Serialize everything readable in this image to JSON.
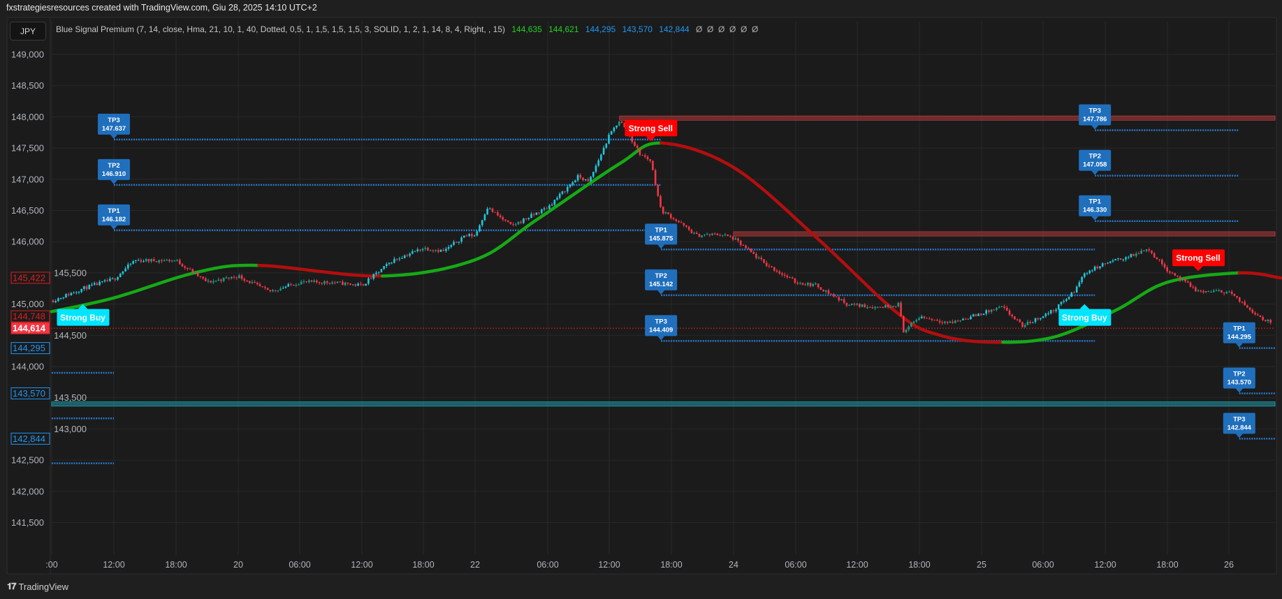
{
  "header": {
    "attribution": "fxstrategiesresources created with TradingView.com, Giu 28, 2025 14:10 UTC+2",
    "symbol": "JPY",
    "indicator": "Blue Signal Premium (7, 14, close, Hma, 21, 10, 1, 40, Dotted, 0,5, 1, 1,5, 1,5, 1,5, 3, SOLID, 1, 2, 1, 14, 8, 4, Right, , 15)",
    "values": [
      {
        "text": "144,635",
        "color": "#22d322"
      },
      {
        "text": "144,621",
        "color": "#22d322"
      },
      {
        "text": "144,295",
        "color": "#2196f3"
      },
      {
        "text": "143,570",
        "color": "#2196f3"
      },
      {
        "text": "142,844",
        "color": "#2196f3"
      }
    ],
    "nulls": "Ø  Ø  Ø  Ø  Ø  Ø"
  },
  "watermark": {
    "logo": "17",
    "text": "TradingView"
  },
  "colors": {
    "up": "#12a08a",
    "up_strong": "#1ec8dc",
    "down": "#f23645",
    "hma_bull": "#16a916",
    "hma_bear": "#b30e0e",
    "tp": "#1f6fbd",
    "buy": "#00e5ff",
    "sell": "#ff0000",
    "zone_red": "#b33a3a",
    "zone_cyan": "#1f9aa8",
    "grid": "#282828",
    "axis_text": "#b2b5be"
  },
  "chart_data": {
    "type": "candlestick",
    "price_axis": {
      "side": "left",
      "range": [
        141.3,
        149.2
      ]
    },
    "price_ticks": [
      {
        "label": "149,000",
        "value": 149.0
      },
      {
        "label": "148,500",
        "value": 148.5
      },
      {
        "label": "148,000",
        "value": 148.0
      },
      {
        "label": "147,500",
        "value": 147.5
      },
      {
        "label": "147,000",
        "value": 147.0
      },
      {
        "label": "146,500",
        "value": 146.5
      },
      {
        "label": "146,000",
        "value": 146.0
      },
      {
        "label": "145,500",
        "value": 145.5
      },
      {
        "label": "145,000",
        "value": 145.0
      },
      {
        "label": "144,500",
        "value": 144.5
      },
      {
        "label": "144,000",
        "value": 144.0
      },
      {
        "label": "143,500",
        "value": 143.5
      },
      {
        "label": "143,000",
        "value": 143.0
      },
      {
        "label": "142,500",
        "value": 142.5
      },
      {
        "label": "142,000",
        "value": 142.0
      },
      {
        "label": "141,500",
        "value": 141.5
      }
    ],
    "time_ticks": [
      ":00",
      "12:00",
      "18:00",
      "20",
      "06:00",
      "12:00",
      "18:00",
      "22",
      "06:00",
      "12:00",
      "18:00",
      "24",
      "06:00",
      "12:00",
      "18:00",
      "25",
      "06:00",
      "12:00",
      "18:00",
      "26"
    ],
    "grid": true,
    "price_path": [
      {
        "t": "19 06:00",
        "close": 145.05
      },
      {
        "t": "19 09:00",
        "close": 145.25
      },
      {
        "t": "19 12:00",
        "close": 145.4
      },
      {
        "t": "19 14:00",
        "close": 145.7
      },
      {
        "t": "19 18:00",
        "close": 145.7
      },
      {
        "t": "19 21:00",
        "close": 145.35
      },
      {
        "t": "20 00:00",
        "close": 145.45
      },
      {
        "t": "20 03:00",
        "close": 145.2
      },
      {
        "t": "20 06:00",
        "close": 145.35
      },
      {
        "t": "20 09:00",
        "close": 145.35
      },
      {
        "t": "20 12:00",
        "close": 145.3
      },
      {
        "t": "20 15:00",
        "close": 145.7
      },
      {
        "t": "20 18:00",
        "close": 145.9
      },
      {
        "t": "21 06:00",
        "close": 145.85
      },
      {
        "t": "21 18:00",
        "close": 146.1
      },
      {
        "t": "22 00:00",
        "close": 146.1
      },
      {
        "t": "22 01:00",
        "close": 146.55
      },
      {
        "t": "22 03:00",
        "close": 146.25
      },
      {
        "t": "22 06:00",
        "close": 146.55
      },
      {
        "t": "22 09:00",
        "close": 147.05
      },
      {
        "t": "22 10:00",
        "close": 146.95
      },
      {
        "t": "22 12:00",
        "close": 147.7
      },
      {
        "t": "22 13:00",
        "close": 147.95
      },
      {
        "t": "22 15:00",
        "close": 147.4
      },
      {
        "t": "22 16:00",
        "close": 147.3
      },
      {
        "t": "22 17:00",
        "close": 146.5
      },
      {
        "t": "22 18:00",
        "close": 146.4
      },
      {
        "t": "23 06:00",
        "close": 146.1
      },
      {
        "t": "23 18:00",
        "close": 146.12
      },
      {
        "t": "24 00:00",
        "close": 146.05
      },
      {
        "t": "24 03:00",
        "close": 145.65
      },
      {
        "t": "24 06:00",
        "close": 145.35
      },
      {
        "t": "24 08:00",
        "close": 145.3
      },
      {
        "t": "24 11:00",
        "close": 145.0
      },
      {
        "t": "24 14:00",
        "close": 144.95
      },
      {
        "t": "24 16:00",
        "close": 145.0
      },
      {
        "t": "24 16:30",
        "close": 144.55
      },
      {
        "t": "24 18:00",
        "close": 144.8
      },
      {
        "t": "24 21:00",
        "close": 144.7
      },
      {
        "t": "25 00:00",
        "close": 144.85
      },
      {
        "t": "25 02:00",
        "close": 144.95
      },
      {
        "t": "25 04:00",
        "close": 144.65
      },
      {
        "t": "25 07:00",
        "close": 144.9
      },
      {
        "t": "25 09:00",
        "close": 145.2
      },
      {
        "t": "25 10:00",
        "close": 145.5
      },
      {
        "t": "25 12:00",
        "close": 145.65
      },
      {
        "t": "25 15:00",
        "close": 145.8
      },
      {
        "t": "25 16:00",
        "close": 145.9
      },
      {
        "t": "25 18:00",
        "close": 145.55
      },
      {
        "t": "25 21:00",
        "close": 145.2
      },
      {
        "t": "26 00:00",
        "close": 145.2
      },
      {
        "t": "26 01:00",
        "close": 145.05
      },
      {
        "t": "26 03:00",
        "close": 144.8
      },
      {
        "t": "26 04:00",
        "close": 144.7
      }
    ],
    "hma": [
      {
        "t": "19 06:00",
        "v": 144.88
      },
      {
        "t": "19 12:00",
        "v": 145.1
      },
      {
        "t": "19 20:00",
        "v": 145.51
      },
      {
        "t": "20 02:00",
        "v": 145.62
      },
      {
        "t": "20 14:00",
        "v": 145.45
      },
      {
        "t": "22 00:00",
        "v": 145.71
      },
      {
        "t": "22 05:00",
        "v": 146.34
      },
      {
        "t": "22 13:00",
        "v": 147.25
      },
      {
        "t": "22 17:00",
        "v": 147.58
      },
      {
        "t": "24 00:00",
        "v": 147.19
      },
      {
        "t": "24 08:00",
        "v": 146.07
      },
      {
        "t": "24 16:00",
        "v": 144.84
      },
      {
        "t": "24 20:00",
        "v": 144.5
      },
      {
        "t": "25 01:00",
        "v": 144.39
      },
      {
        "t": "25 07:00",
        "v": 144.47
      },
      {
        "t": "25 13:00",
        "v": 144.9
      },
      {
        "t": "25 18:00",
        "v": 145.35
      },
      {
        "t": "26 01:00",
        "v": 145.5
      },
      {
        "t": "26 05:00",
        "v": 145.42
      }
    ],
    "hma_trend": [
      {
        "from": "19 06:00",
        "to": "20 02:00",
        "trend": "bull"
      },
      {
        "from": "20 02:00",
        "to": "20 14:00",
        "trend": "bear"
      },
      {
        "from": "20 14:00",
        "to": "22 17:00",
        "trend": "bull"
      },
      {
        "from": "22 17:00",
        "to": "25 02:00",
        "trend": "bear"
      },
      {
        "from": "25 02:00",
        "to": "26 01:00",
        "trend": "bull"
      },
      {
        "from": "26 01:00",
        "to": "26 05:00",
        "trend": "bear"
      }
    ],
    "signals": [
      {
        "label": "Strong Buy",
        "kind": "buy",
        "t": "19 09:00",
        "price": 145.0
      },
      {
        "label": "Strong Sell",
        "kind": "sell",
        "t": "22 16:00",
        "price": 147.61
      },
      {
        "label": "Strong Buy",
        "kind": "buy",
        "t": "25 10:00",
        "price": 145.0
      },
      {
        "label": "Strong Sell",
        "kind": "sell",
        "t": "25 21:00",
        "price": 145.53
      }
    ],
    "tp_sets": [
      {
        "from": "19 12:00",
        "to": "22 17:00",
        "levels": [
          {
            "name": "TP3",
            "label": "147.637",
            "price": 147.637
          },
          {
            "name": "TP2",
            "label": "146.910",
            "price": 146.91
          },
          {
            "name": "TP1",
            "label": "146.182",
            "price": 146.182
          }
        ]
      },
      {
        "from": "22 17:00",
        "to": "25 11:00",
        "levels": [
          {
            "name": "TP1",
            "label": "145.875",
            "price": 145.875
          },
          {
            "name": "TP2",
            "label": "145.142",
            "price": 145.142
          },
          {
            "name": "TP3",
            "label": "144.409",
            "price": 144.409
          }
        ]
      },
      {
        "from": "25 11:00",
        "to": "26 01:00",
        "levels": [
          {
            "name": "TP3",
            "label": "147.786",
            "price": 147.786
          },
          {
            "name": "TP2",
            "label": "147.058",
            "price": 147.058
          },
          {
            "name": "TP1",
            "label": "146.330",
            "price": 146.33
          }
        ]
      },
      {
        "from": "26 01:00",
        "to": "26 04:30",
        "levels": [
          {
            "name": "TP1",
            "label": "144.295",
            "price": 144.295
          },
          {
            "name": "TP2",
            "label": "143.570",
            "price": 143.57
          },
          {
            "name": "TP3",
            "label": "142.844",
            "price": 142.844
          }
        ]
      }
    ],
    "stop_lines": [
      {
        "from": "19 06:00",
        "to": "19 12:00",
        "price": 143.9
      },
      {
        "from": "19 06:00",
        "to": "19 12:00",
        "price": 143.17
      },
      {
        "from": "19 06:00",
        "to": "19 12:00",
        "price": 142.45
      }
    ],
    "zones": [
      {
        "color": "red",
        "from": "22 13:00",
        "price": 147.98
      },
      {
        "color": "red",
        "from": "24 00:00",
        "price": 146.125
      },
      {
        "color": "cyan",
        "from": "19 06:00",
        "price": 143.4
      }
    ],
    "current_price": {
      "label": "144,614",
      "price": 144.614
    },
    "axis_tags": [
      {
        "label": "145,422",
        "price": 145.422,
        "style": "red-outline"
      },
      {
        "label": "144,748",
        "price": 144.748,
        "style": "red-outline"
      },
      {
        "label": "144,614",
        "price": 144.614,
        "style": "red-fill"
      },
      {
        "label": "144,295",
        "price": 144.295,
        "style": "blue-outline"
      },
      {
        "label": "143,570",
        "price": 143.57,
        "style": "blue-outline"
      },
      {
        "label": "142,844",
        "price": 142.844,
        "style": "blue-outline"
      }
    ]
  }
}
